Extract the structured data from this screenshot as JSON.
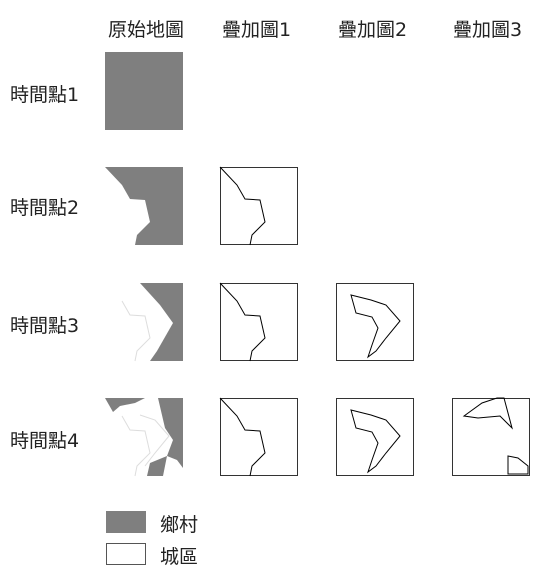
{
  "columns": [
    "原始地圖",
    "疊加圖1",
    "疊加圖2",
    "疊加圖3"
  ],
  "rows": [
    "時間點1",
    "時間點2",
    "時間點3",
    "時間點4"
  ],
  "legend": [
    {
      "label": "鄉村",
      "color": "#7f7f7f"
    },
    {
      "label": "城區",
      "color": "#ffffff"
    }
  ],
  "colors": {
    "rural": "#7f7f7f",
    "urban": "#ffffff",
    "outline": "#000000",
    "text": "#222222"
  }
}
